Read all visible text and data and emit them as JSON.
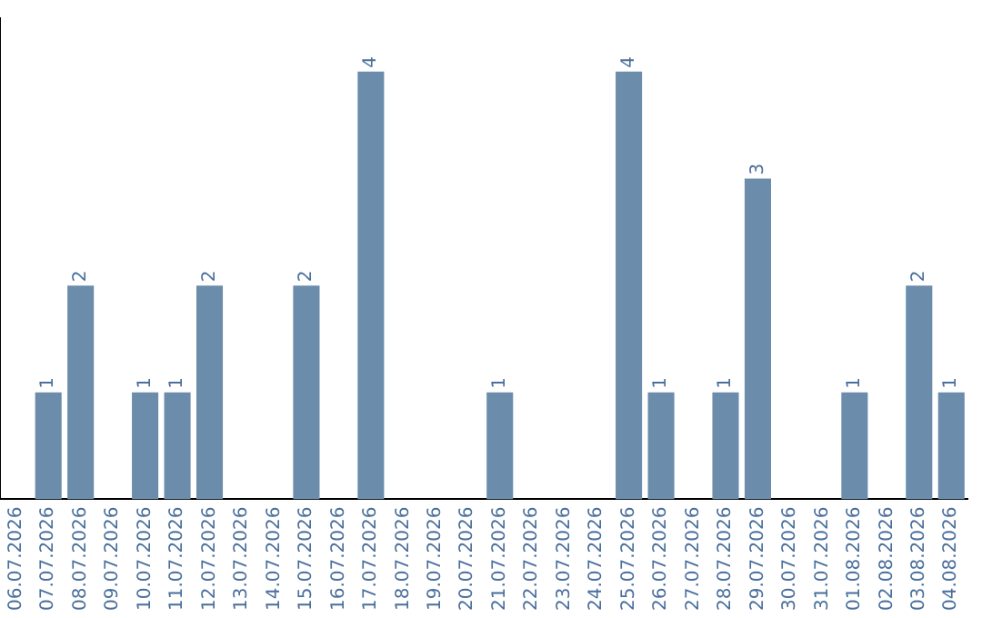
{
  "chart_data": {
    "type": "bar",
    "categories": [
      "06.07.2026",
      "07.07.2026",
      "08.07.2026",
      "09.07.2026",
      "10.07.2026",
      "11.07.2026",
      "12.07.2026",
      "13.07.2026",
      "14.07.2026",
      "15.07.2026",
      "16.07.2026",
      "17.07.2026",
      "18.07.2026",
      "19.07.2026",
      "20.07.2026",
      "21.07.2026",
      "22.07.2026",
      "23.07.2026",
      "24.07.2026",
      "25.07.2026",
      "26.07.2026",
      "27.07.2026",
      "28.07.2026",
      "29.07.2026",
      "30.07.2026",
      "31.07.2026",
      "01.08.2026",
      "02.08.2026",
      "03.08.2026",
      "04.08.2026"
    ],
    "values": [
      0,
      1,
      2,
      0,
      1,
      1,
      2,
      0,
      0,
      2,
      0,
      4,
      0,
      0,
      0,
      1,
      0,
      0,
      0,
      4,
      1,
      0,
      1,
      3,
      0,
      0,
      1,
      0,
      2,
      1
    ],
    "value_labels": [
      null,
      "1",
      "2",
      null,
      "1",
      "1",
      "2",
      null,
      null,
      "2",
      null,
      "4",
      null,
      null,
      null,
      "1",
      null,
      null,
      null,
      "4",
      "1",
      null,
      "1",
      "3",
      null,
      null,
      "1",
      null,
      "2",
      "1"
    ],
    "color": "#6b8cab",
    "grid": false,
    "legend": false,
    "tick_labels": "x"
  }
}
